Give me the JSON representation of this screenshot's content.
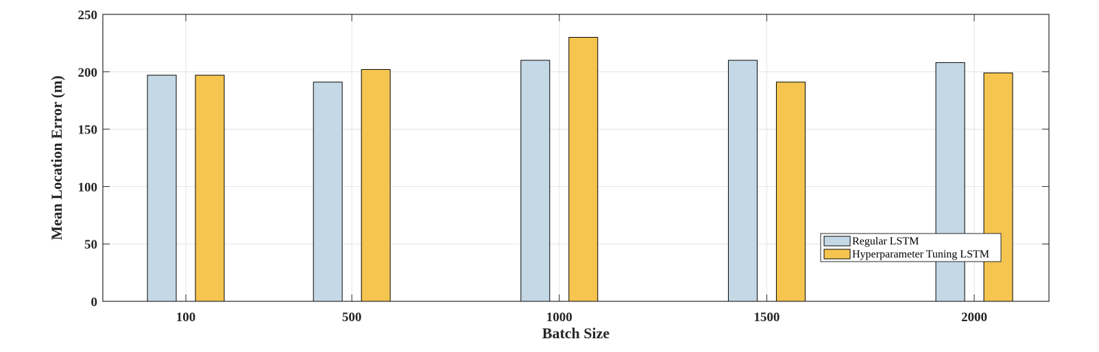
{
  "chart_data": {
    "type": "bar",
    "title": "",
    "categories": [
      "100",
      "500",
      "1000",
      "1500",
      "2000"
    ],
    "x": [
      100,
      500,
      1000,
      1500,
      2000
    ],
    "series": [
      {
        "name": "Regular LSTM",
        "values": [
          197,
          191,
          210,
          210,
          208
        ],
        "color": "#c5d8e6"
      },
      {
        "name": "Hyperparameter Tuning LSTM",
        "values": [
          197,
          202,
          230,
          191,
          199
        ],
        "color": "#f5c550"
      }
    ],
    "xlabel": "Batch Size",
    "ylabel": "Mean Location Error (m)",
    "xlim": [
      -100,
      2180
    ],
    "ylim": [
      0,
      250
    ],
    "yticks": [
      0,
      50,
      100,
      150,
      200,
      250
    ],
    "grid": true,
    "legend_position": "bottom-right"
  }
}
